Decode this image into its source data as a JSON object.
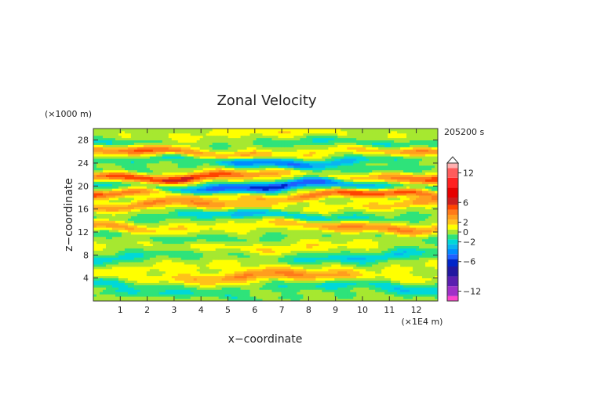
{
  "chart_data": {
    "type": "heatmap",
    "title": "Zonal Velocity",
    "xlabel": "x−coordinate",
    "ylabel": "z−coordinate",
    "x_unit": "(×1E4 m)",
    "y_unit": "(×1000 m)",
    "time_label": "205200 s",
    "xlim": [
      0,
      12.8
    ],
    "ylim": [
      0,
      30
    ],
    "x_ticks": [
      "1",
      "2",
      "3",
      "4",
      "5",
      "6",
      "7",
      "8",
      "9",
      "10",
      "11",
      "12"
    ],
    "y_ticks": [
      "4",
      "8",
      "12",
      "16",
      "20",
      "24",
      "28"
    ],
    "grid": false,
    "colorbar": {
      "tick_labels": [
        "12",
        "6",
        "2",
        "0",
        "−2",
        "−6",
        "−12"
      ],
      "levels": [
        {
          "value": 14,
          "color": "#ffb0b0"
        },
        {
          "value": 12,
          "color": "#ff5c5c"
        },
        {
          "value": 10,
          "color": "#ff2020"
        },
        {
          "value": 8,
          "color": "#e60000"
        },
        {
          "value": 6,
          "color": "#cc1e1e"
        },
        {
          "value": 5,
          "color": "#ff4500"
        },
        {
          "value": 4,
          "color": "#ff7a1a"
        },
        {
          "value": 3,
          "color": "#ff9e1e"
        },
        {
          "value": 2,
          "color": "#ffc21a"
        },
        {
          "value": 1,
          "color": "#ffff00"
        },
        {
          "value": 0,
          "color": "#a6e830"
        },
        {
          "value": -1,
          "color": "#2ee37a"
        },
        {
          "value": -2,
          "color": "#00d8d8"
        },
        {
          "value": -3,
          "color": "#0ab4f0"
        },
        {
          "value": -4,
          "color": "#008cff"
        },
        {
          "value": -5,
          "color": "#1f5fff"
        },
        {
          "value": -6,
          "color": "#0025c8"
        },
        {
          "value": -8,
          "color": "#2218a0"
        },
        {
          "value": -10,
          "color": "#5a1fb0"
        },
        {
          "value": -12,
          "color": "#a030c8"
        },
        {
          "value": -14,
          "color": "#ff44cc"
        }
      ]
    },
    "field": {
      "x_range": [
        0,
        12.8
      ],
      "z_range": [
        0,
        30
      ],
      "bands": [
        {
          "z": 1.0,
          "amp": -1.2,
          "width": 0.6
        },
        {
          "z": 2.5,
          "amp": -2.0,
          "width": 0.9
        },
        {
          "z": 4.2,
          "amp": 3.0,
          "width": 1.0
        },
        {
          "z": 6.0,
          "amp": 0.8,
          "width": 0.9
        },
        {
          "z": 7.8,
          "amp": -2.0,
          "width": 0.9
        },
        {
          "z": 9.6,
          "amp": 1.2,
          "width": 0.9
        },
        {
          "z": 11.2,
          "amp": -1.2,
          "width": 0.8
        },
        {
          "z": 13.0,
          "amp": 3.2,
          "width": 0.9
        },
        {
          "z": 14.8,
          "amp": -2.6,
          "width": 0.8
        },
        {
          "z": 16.6,
          "amp": 3.0,
          "width": 0.8
        },
        {
          "z": 18.4,
          "amp": 4.4,
          "width": 0.7
        },
        {
          "z": 20.0,
          "amp": -5.0,
          "width": 0.8
        },
        {
          "z": 21.8,
          "amp": 5.0,
          "width": 0.8
        },
        {
          "z": 23.2,
          "amp": -1.0,
          "width": 0.6
        },
        {
          "z": 24.4,
          "amp": -3.6,
          "width": 0.8
        },
        {
          "z": 25.8,
          "amp": 4.0,
          "width": 0.8
        },
        {
          "z": 27.4,
          "amp": -1.6,
          "width": 0.8
        },
        {
          "z": 29.0,
          "amp": 1.0,
          "width": 0.8
        }
      ]
    }
  }
}
